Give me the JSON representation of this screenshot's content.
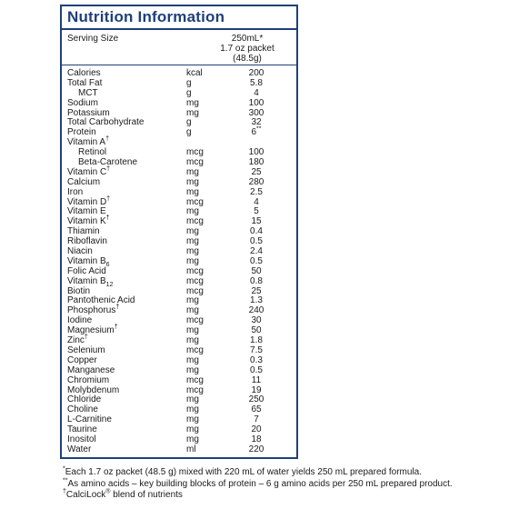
{
  "title": "Nutrition Information",
  "serving": {
    "label": "Serving Size",
    "lines": [
      "250mL*",
      "1.7 oz packet",
      "(48.5g)"
    ]
  },
  "rows": [
    {
      "name": "Calories",
      "unit": "kcal",
      "value": "200"
    },
    {
      "name": "Total Fat",
      "unit": "g",
      "value": "5.8"
    },
    {
      "name": "MCT",
      "unit": "g",
      "value": "4",
      "indent": true
    },
    {
      "name": "Sodium",
      "unit": "mg",
      "value": "100"
    },
    {
      "name": "Potassium",
      "unit": "mg",
      "value": "300"
    },
    {
      "name": "Total Carbohydrate",
      "unit": "g",
      "value": "32"
    },
    {
      "name": "Protein",
      "unit": "g",
      "value": "6",
      "vmark": "**"
    },
    {
      "name": "Vitamin A",
      "unit": "",
      "value": "",
      "mark": "†"
    },
    {
      "name": "Retinol",
      "unit": "mcg",
      "value": "100",
      "indent": true
    },
    {
      "name": "Beta-Carotene",
      "unit": "mcg",
      "value": "180",
      "indent": true
    },
    {
      "name": "Vitamin C",
      "unit": "mg",
      "value": "25",
      "mark": "†"
    },
    {
      "name": "Calcium",
      "unit": "mg",
      "value": "280"
    },
    {
      "name": "Iron",
      "unit": "mg",
      "value": "2.5"
    },
    {
      "name": "Vitamin D",
      "unit": "mcg",
      "value": "4",
      "mark": "†"
    },
    {
      "name": "Vitamin E",
      "unit": "mg",
      "value": "5"
    },
    {
      "name": "Vitamin K",
      "unit": "mcg",
      "value": "15",
      "mark": "†"
    },
    {
      "name": "Thiamin",
      "unit": "mg",
      "value": "0.4"
    },
    {
      "name": "Riboflavin",
      "unit": "mg",
      "value": "0.5"
    },
    {
      "name": "Niacin",
      "unit": "mg",
      "value": "2.4"
    },
    {
      "name": "Vitamin B",
      "unit": "mg",
      "value": "0.5",
      "sub": "6"
    },
    {
      "name": "Folic Acid",
      "unit": "mcg",
      "value": "50"
    },
    {
      "name": "Vitamin B",
      "unit": "mcg",
      "value": "0.8",
      "sub": "12"
    },
    {
      "name": "Biotin",
      "unit": "mcg",
      "value": "25"
    },
    {
      "name": "Pantothenic Acid",
      "unit": "mg",
      "value": "1.3"
    },
    {
      "name": "Phosphorus",
      "unit": "mg",
      "value": "240",
      "mark": "†"
    },
    {
      "name": "Iodine",
      "unit": "mcg",
      "value": "30"
    },
    {
      "name": "Magnesium",
      "unit": "mg",
      "value": "50",
      "mark": "†"
    },
    {
      "name": "Zinc",
      "unit": "mg",
      "value": "1.8",
      "mark": "†"
    },
    {
      "name": "Selenium",
      "unit": "mcg",
      "value": "7.5"
    },
    {
      "name": "Copper",
      "unit": "mg",
      "value": "0.3"
    },
    {
      "name": "Manganese",
      "unit": "mg",
      "value": "0.5"
    },
    {
      "name": "Chromium",
      "unit": "mcg",
      "value": "11"
    },
    {
      "name": "Molybdenum",
      "unit": "mcg",
      "value": "19"
    },
    {
      "name": "Chloride",
      "unit": "mg",
      "value": "250"
    },
    {
      "name": "Choline",
      "unit": "mg",
      "value": "65"
    },
    {
      "name": "L-Carnitine",
      "unit": "mg",
      "value": "7"
    },
    {
      "name": "Taurine",
      "unit": "mg",
      "value": "20"
    },
    {
      "name": "Inositol",
      "unit": "mg",
      "value": "18"
    },
    {
      "name": "Water",
      "unit": "ml",
      "value": "220"
    }
  ],
  "footnotes": [
    {
      "mark": "*",
      "text": "Each 1.7 oz packet (48.5 g) mixed with 220 mL of water yields 250 mL prepared formula."
    },
    {
      "mark": "**",
      "text": "As amino acids – key building blocks of protein – 6 g amino acids per 250 mL prepared product."
    },
    {
      "mark": "†",
      "text": "CalciLock",
      "reg": "®",
      "tail": " blend of nutrients"
    }
  ]
}
